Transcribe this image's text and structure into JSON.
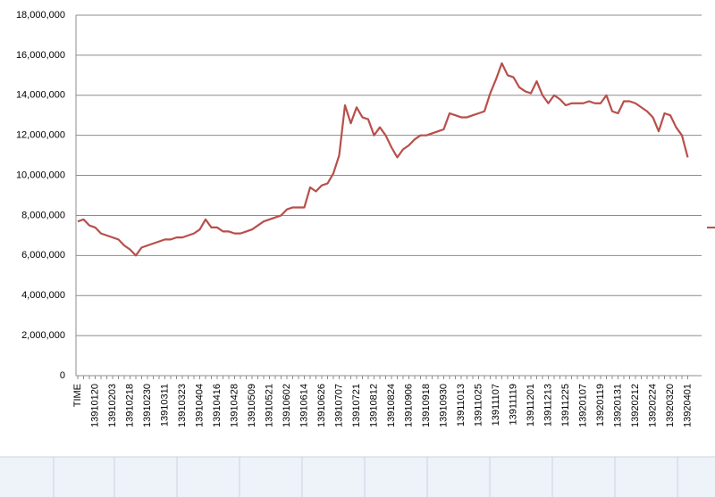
{
  "chart_data": {
    "type": "line",
    "color": "#b84f4b",
    "grid": true,
    "ylim": [
      0,
      18000000
    ],
    "yticks": [
      {
        "value": 0,
        "label": "0"
      },
      {
        "value": 2000000,
        "label": "2,000,000"
      },
      {
        "value": 4000000,
        "label": "4,000,000"
      },
      {
        "value": 6000000,
        "label": "6,000,000"
      },
      {
        "value": 8000000,
        "label": "8,000,000"
      },
      {
        "value": 10000000,
        "label": "10,000,000"
      },
      {
        "value": 12000000,
        "label": "12,000,000"
      },
      {
        "value": 14000000,
        "label": "14,000,000"
      },
      {
        "value": 16000000,
        "label": "16,000,000"
      },
      {
        "value": 18000000,
        "label": "18,000,000"
      }
    ],
    "categories": [
      "TIME",
      null,
      null,
      "13910120",
      null,
      null,
      "13910203",
      null,
      null,
      "13910218",
      null,
      null,
      "13910230",
      null,
      null,
      "13910311",
      null,
      null,
      "13910323",
      null,
      null,
      "13910404",
      null,
      null,
      "13910416",
      null,
      null,
      "13910428",
      null,
      null,
      "13910509",
      null,
      null,
      "13910521",
      null,
      null,
      "13910602",
      null,
      null,
      "13910614",
      null,
      null,
      "13910626",
      null,
      null,
      "13910707",
      null,
      null,
      "13910721",
      null,
      null,
      "13910812",
      null,
      null,
      "13910824",
      null,
      null,
      "13910906",
      null,
      null,
      "13910918",
      null,
      null,
      "13910930",
      null,
      null,
      "13911013",
      null,
      null,
      "13911025",
      null,
      null,
      "13911107",
      null,
      null,
      "13911119",
      null,
      null,
      "13911201",
      null,
      null,
      "13911213",
      null,
      null,
      "13911225",
      null,
      null,
      "13920107",
      null,
      null,
      "13920119",
      null,
      null,
      "13920131",
      null,
      null,
      "13920212",
      null,
      null,
      "13920224",
      null,
      null,
      "13920320",
      null,
      null,
      "13920401"
    ],
    "values": [
      7700000,
      7800000,
      7500000,
      7400000,
      7100000,
      7000000,
      6900000,
      6800000,
      6500000,
      6300000,
      6000000,
      6400000,
      6500000,
      6600000,
      6700000,
      6800000,
      6800000,
      6900000,
      6900000,
      7000000,
      7100000,
      7300000,
      7800000,
      7400000,
      7400000,
      7200000,
      7200000,
      7100000,
      7100000,
      7200000,
      7300000,
      7500000,
      7700000,
      7800000,
      7900000,
      8000000,
      8300000,
      8400000,
      8400000,
      8400000,
      9400000,
      9200000,
      9500000,
      9600000,
      10100000,
      11000000,
      13500000,
      12600000,
      13400000,
      12900000,
      12800000,
      12000000,
      12400000,
      12000000,
      11400000,
      10900000,
      11300000,
      11500000,
      11800000,
      12000000,
      12000000,
      12100000,
      12200000,
      12300000,
      13100000,
      13000000,
      12900000,
      12900000,
      13000000,
      13100000,
      13200000,
      14100000,
      14800000,
      15600000,
      15000000,
      14900000,
      14400000,
      14200000,
      14100000,
      14700000,
      14000000,
      13600000,
      14000000,
      13800000,
      13500000,
      13600000,
      13600000,
      13600000,
      13700000,
      13600000,
      13600000,
      14000000,
      13200000,
      13100000,
      13700000,
      13700000,
      13600000,
      13400000,
      13200000,
      12900000,
      12200000,
      13100000,
      13000000,
      12400000,
      12000000,
      10900000
    ]
  }
}
